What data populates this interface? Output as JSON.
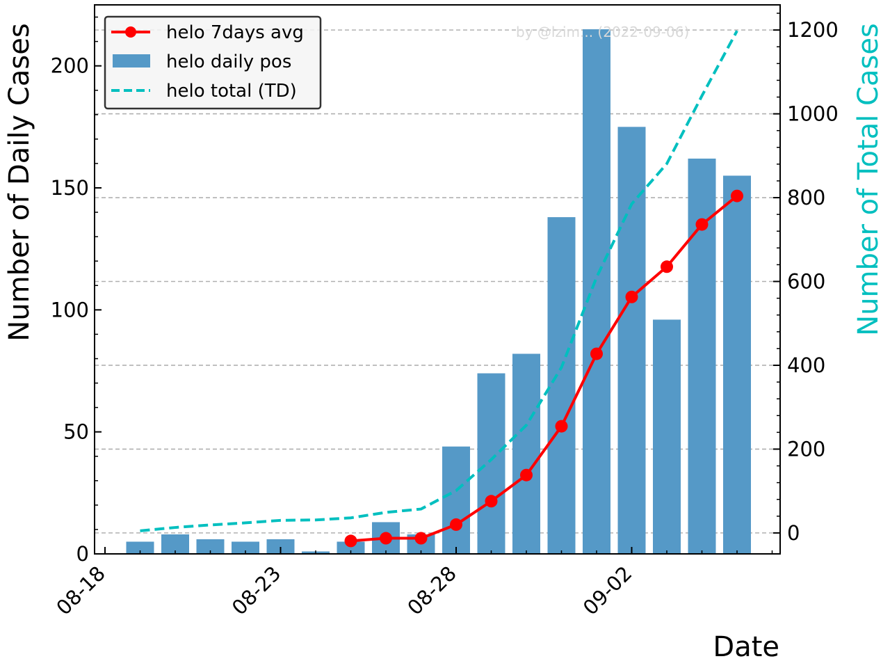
{
  "chart_data": {
    "type": "bar",
    "x": [
      "08-19",
      "08-20",
      "08-21",
      "08-22",
      "08-23",
      "08-24",
      "08-25",
      "08-26",
      "08-27",
      "08-28",
      "08-29",
      "08-30",
      "08-31",
      "09-01",
      "09-02",
      "09-03",
      "09-04",
      "09-05"
    ],
    "xticks": [
      "08-18",
      "08-23",
      "08-28",
      "09-02"
    ],
    "xlabel": "Date",
    "ylabel": "Number of Daily Cases",
    "y2label": "Number of Total Cases",
    "ylim": [
      0,
      225
    ],
    "y2lim": [
      -50,
      1260
    ],
    "yticks": [
      0,
      50,
      100,
      150,
      200
    ],
    "y2ticks": [
      0,
      200,
      400,
      600,
      800,
      1000,
      1200
    ],
    "grid": "y2 dashed",
    "legend_position": "top-left",
    "watermark": "by @lzim... (2022-09-06)",
    "series": [
      {
        "name": "helo 7days avg",
        "kind": "line-markers",
        "axis": "left",
        "color": "#ff0000",
        "values": [
          null,
          null,
          null,
          null,
          null,
          null,
          5.3,
          6.4,
          6.4,
          12,
          21.6,
          32.3,
          52.3,
          82,
          105.3,
          117.7,
          135,
          146.7
        ]
      },
      {
        "name": "helo daily pos",
        "kind": "bar",
        "axis": "left",
        "color": "#5599c7",
        "values": [
          5,
          8,
          6,
          5,
          6,
          1,
          5,
          13,
          8,
          44,
          74,
          82,
          138,
          215,
          175,
          96,
          162,
          155
        ]
      },
      {
        "name": "helo total (TD)",
        "kind": "dashed-line",
        "axis": "right",
        "color": "#00bfbf",
        "values": [
          5,
          13,
          19,
          24,
          30,
          31,
          36,
          49,
          57,
          101,
          175,
          257,
          395,
          610,
          785,
          881,
          1043,
          1198
        ]
      }
    ]
  }
}
